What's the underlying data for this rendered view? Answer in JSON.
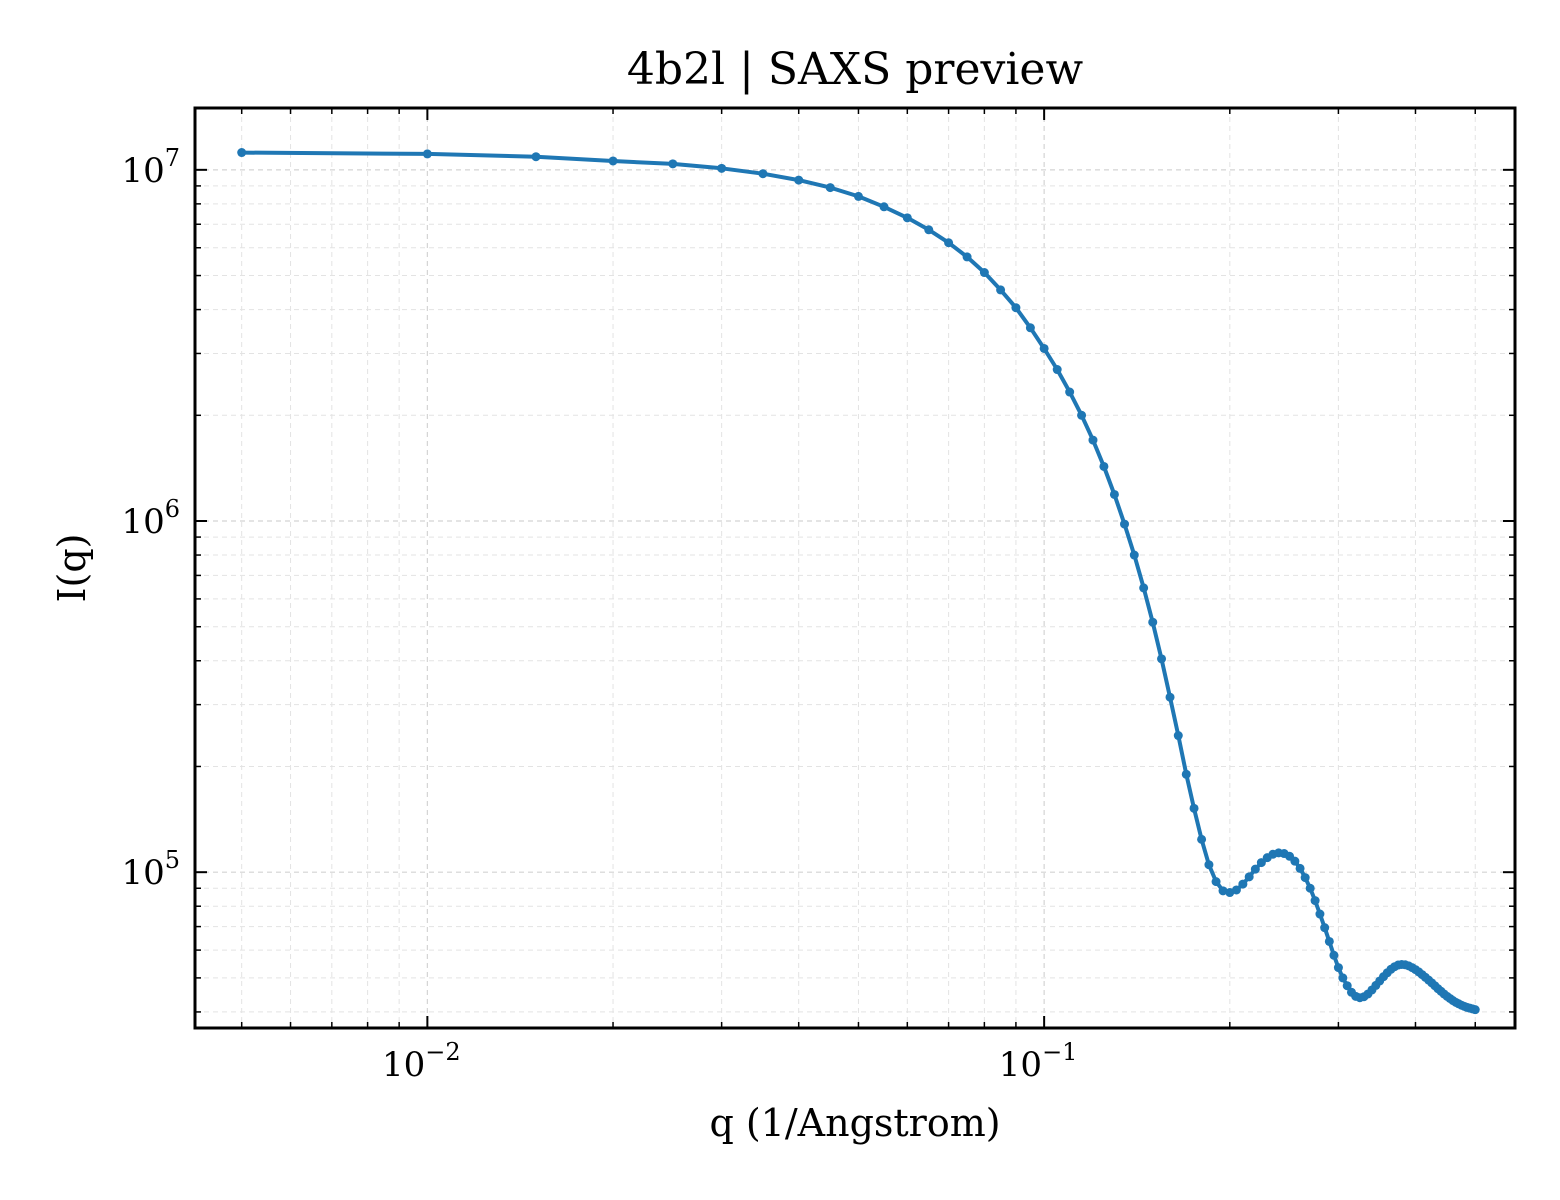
{
  "chart_data": {
    "type": "line",
    "title": "4b2l | SAXS preview",
    "xlabel": "q (1/Angstrom)",
    "ylabel": "I(q)",
    "xscale": "log",
    "yscale": "log",
    "xlim": [
      0.0042,
      0.58
    ],
    "ylim": [
      36000,
      15000000
    ],
    "x_ticks": [
      {
        "value": 0.01,
        "base": "10",
        "exp": "−2"
      },
      {
        "value": 0.1,
        "base": "10",
        "exp": "−1"
      }
    ],
    "y_ticks": [
      {
        "value": 100000,
        "base": "10",
        "exp": "5"
      },
      {
        "value": 1000000,
        "base": "10",
        "exp": "6"
      },
      {
        "value": 10000000,
        "base": "10",
        "exp": "7"
      }
    ],
    "grid": true,
    "color": "#1f77b4",
    "series": [
      {
        "x": [
          0.005,
          0.01,
          0.015,
          0.02,
          0.025,
          0.03,
          0.035,
          0.04,
          0.045,
          0.05,
          0.055,
          0.06,
          0.065,
          0.07,
          0.075,
          0.08,
          0.085,
          0.09,
          0.095,
          0.1,
          0.105,
          0.11,
          0.115,
          0.12,
          0.125,
          0.13,
          0.135,
          0.14,
          0.145,
          0.15,
          0.155,
          0.16,
          0.165,
          0.17,
          0.175,
          0.18,
          0.185,
          0.19,
          0.195,
          0.2,
          0.205,
          0.21,
          0.215,
          0.22,
          0.225,
          0.23,
          0.235,
          0.24,
          0.245,
          0.25,
          0.255,
          0.26,
          0.265,
          0.27,
          0.275,
          0.28,
          0.285,
          0.29,
          0.295,
          0.3,
          0.305,
          0.31,
          0.315,
          0.32,
          0.325,
          0.33,
          0.335,
          0.34,
          0.345,
          0.35,
          0.355,
          0.36,
          0.365,
          0.37,
          0.375,
          0.38,
          0.385,
          0.39,
          0.395,
          0.4,
          0.405,
          0.41,
          0.415,
          0.42,
          0.425,
          0.43,
          0.435,
          0.44,
          0.445,
          0.45,
          0.455,
          0.46,
          0.465,
          0.47,
          0.475,
          0.48,
          0.485,
          0.49,
          0.495,
          0.5
        ],
        "y": [
          11200000,
          11100000,
          10900000,
          10600000,
          10400000,
          10100000,
          9750000,
          9350000,
          8900000,
          8400000,
          7850000,
          7300000,
          6750000,
          6200000,
          5650000,
          5100000,
          4550000,
          4050000,
          3550000,
          3100000,
          2700000,
          2330000,
          2000000,
          1700000,
          1430000,
          1190000,
          980000,
          800000,
          645000,
          515000,
          405000,
          315000,
          245000,
          190000,
          152000,
          124000,
          105000,
          94000,
          88500,
          87500,
          89000,
          92500,
          97000,
          102000,
          106500,
          110000,
          112500,
          113500,
          113000,
          111000,
          107500,
          102500,
          96500,
          90000,
          83000,
          76000,
          69500,
          63500,
          58000,
          53500,
          50000,
          47500,
          45500,
          44300,
          43900,
          44200,
          45000,
          46200,
          47600,
          49000,
          50400,
          51700,
          52900,
          53800,
          54400,
          54600,
          54500,
          54100,
          53500,
          52800,
          52000,
          51100,
          50200,
          49300,
          48400,
          47500,
          46600,
          45800,
          45000,
          44300,
          43700,
          43100,
          42600,
          42200,
          41800,
          41500,
          41200,
          41000,
          40800,
          40600
        ]
      }
    ]
  }
}
